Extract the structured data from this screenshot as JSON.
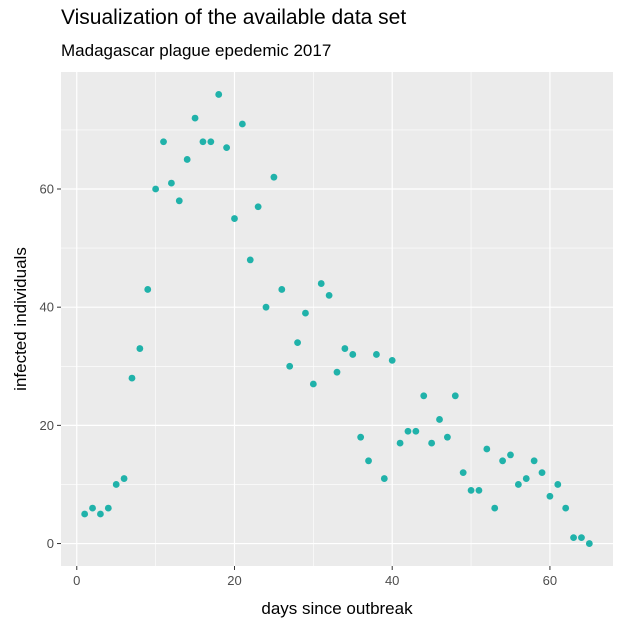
{
  "chart_data": {
    "type": "scatter",
    "title": "Visualization of the available data set",
    "subtitle": "Madagascar plague epedemic 2017",
    "xlabel": "days since outbreak",
    "ylabel": "infected individuals",
    "xlim": [
      -2,
      68
    ],
    "ylim": [
      -3.8,
      79.8
    ],
    "xticks": [
      0,
      20,
      40,
      60
    ],
    "yticks": [
      0,
      20,
      40,
      60
    ],
    "grid": true,
    "point_color": "#20b2aa",
    "panel_color": "#ebebeb",
    "x": [
      1,
      2,
      3,
      4,
      5,
      6,
      7,
      8,
      9,
      10,
      11,
      12,
      13,
      14,
      15,
      16,
      17,
      18,
      19,
      20,
      21,
      22,
      23,
      24,
      25,
      26,
      27,
      28,
      29,
      30,
      31,
      32,
      33,
      34,
      35,
      36,
      37,
      38,
      39,
      40,
      41,
      42,
      43,
      44,
      45,
      46,
      47,
      48,
      49,
      50,
      51,
      52,
      53,
      54,
      55,
      56,
      57,
      58,
      59,
      60,
      61,
      62,
      63,
      64,
      65
    ],
    "y": [
      5,
      6,
      5,
      6,
      10,
      11,
      28,
      33,
      43,
      60,
      68,
      61,
      58,
      65,
      72,
      68,
      68,
      76,
      67,
      55,
      71,
      48,
      57,
      40,
      62,
      43,
      30,
      34,
      39,
      27,
      44,
      42,
      29,
      33,
      32,
      18,
      14,
      32,
      11,
      31,
      17,
      19,
      19,
      25,
      17,
      21,
      18,
      25,
      12,
      9,
      9,
      16,
      6,
      14,
      15,
      10,
      11,
      14,
      12,
      8,
      10,
      6,
      1,
      1,
      0
    ]
  }
}
